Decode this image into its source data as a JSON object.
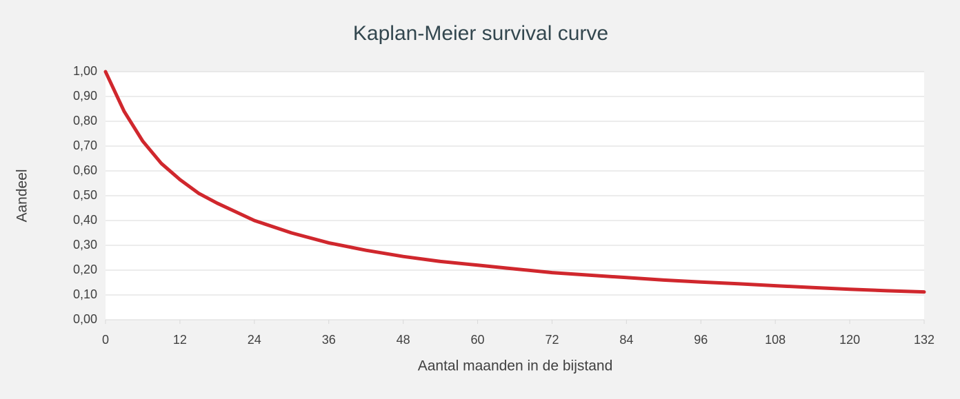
{
  "chart_data": {
    "type": "line",
    "title": "Kaplan-Meier survival curve",
    "x_label": "Aantal maanden in de bijstand",
    "y_label": "Aandeel",
    "x": [
      0,
      3,
      6,
      9,
      12,
      15,
      18,
      21,
      24,
      30,
      36,
      42,
      48,
      54,
      60,
      66,
      72,
      78,
      84,
      90,
      96,
      102,
      108,
      114,
      120,
      126,
      132
    ],
    "series": [
      {
        "name": "Survival",
        "color": "#d0272d",
        "values": [
          1.0,
          0.84,
          0.72,
          0.63,
          0.565,
          0.51,
          0.47,
          0.435,
          0.4,
          0.35,
          0.31,
          0.28,
          0.255,
          0.235,
          0.22,
          0.205,
          0.19,
          0.18,
          0.17,
          0.16,
          0.152,
          0.145,
          0.137,
          0.13,
          0.123,
          0.117,
          0.112
        ]
      }
    ],
    "xlim": [
      0,
      132
    ],
    "xticks": [
      0,
      12,
      24,
      36,
      48,
      60,
      72,
      84,
      96,
      108,
      120,
      132
    ],
    "ylim": [
      0,
      1
    ],
    "yticks": [
      {
        "value": 0,
        "label": "0,00"
      },
      {
        "value": 0.1,
        "label": "0,10"
      },
      {
        "value": 0.2,
        "label": "0,20"
      },
      {
        "value": 0.3,
        "label": "0,30"
      },
      {
        "value": 0.4,
        "label": "0,40"
      },
      {
        "value": 0.5,
        "label": "0,50"
      },
      {
        "value": 0.6,
        "label": "0,60"
      },
      {
        "value": 0.7,
        "label": "0,70"
      },
      {
        "value": 0.8,
        "label": "0,80"
      },
      {
        "value": 0.9,
        "label": "0,90"
      },
      {
        "value": 1,
        "label": "1,00"
      }
    ],
    "grid": true
  }
}
